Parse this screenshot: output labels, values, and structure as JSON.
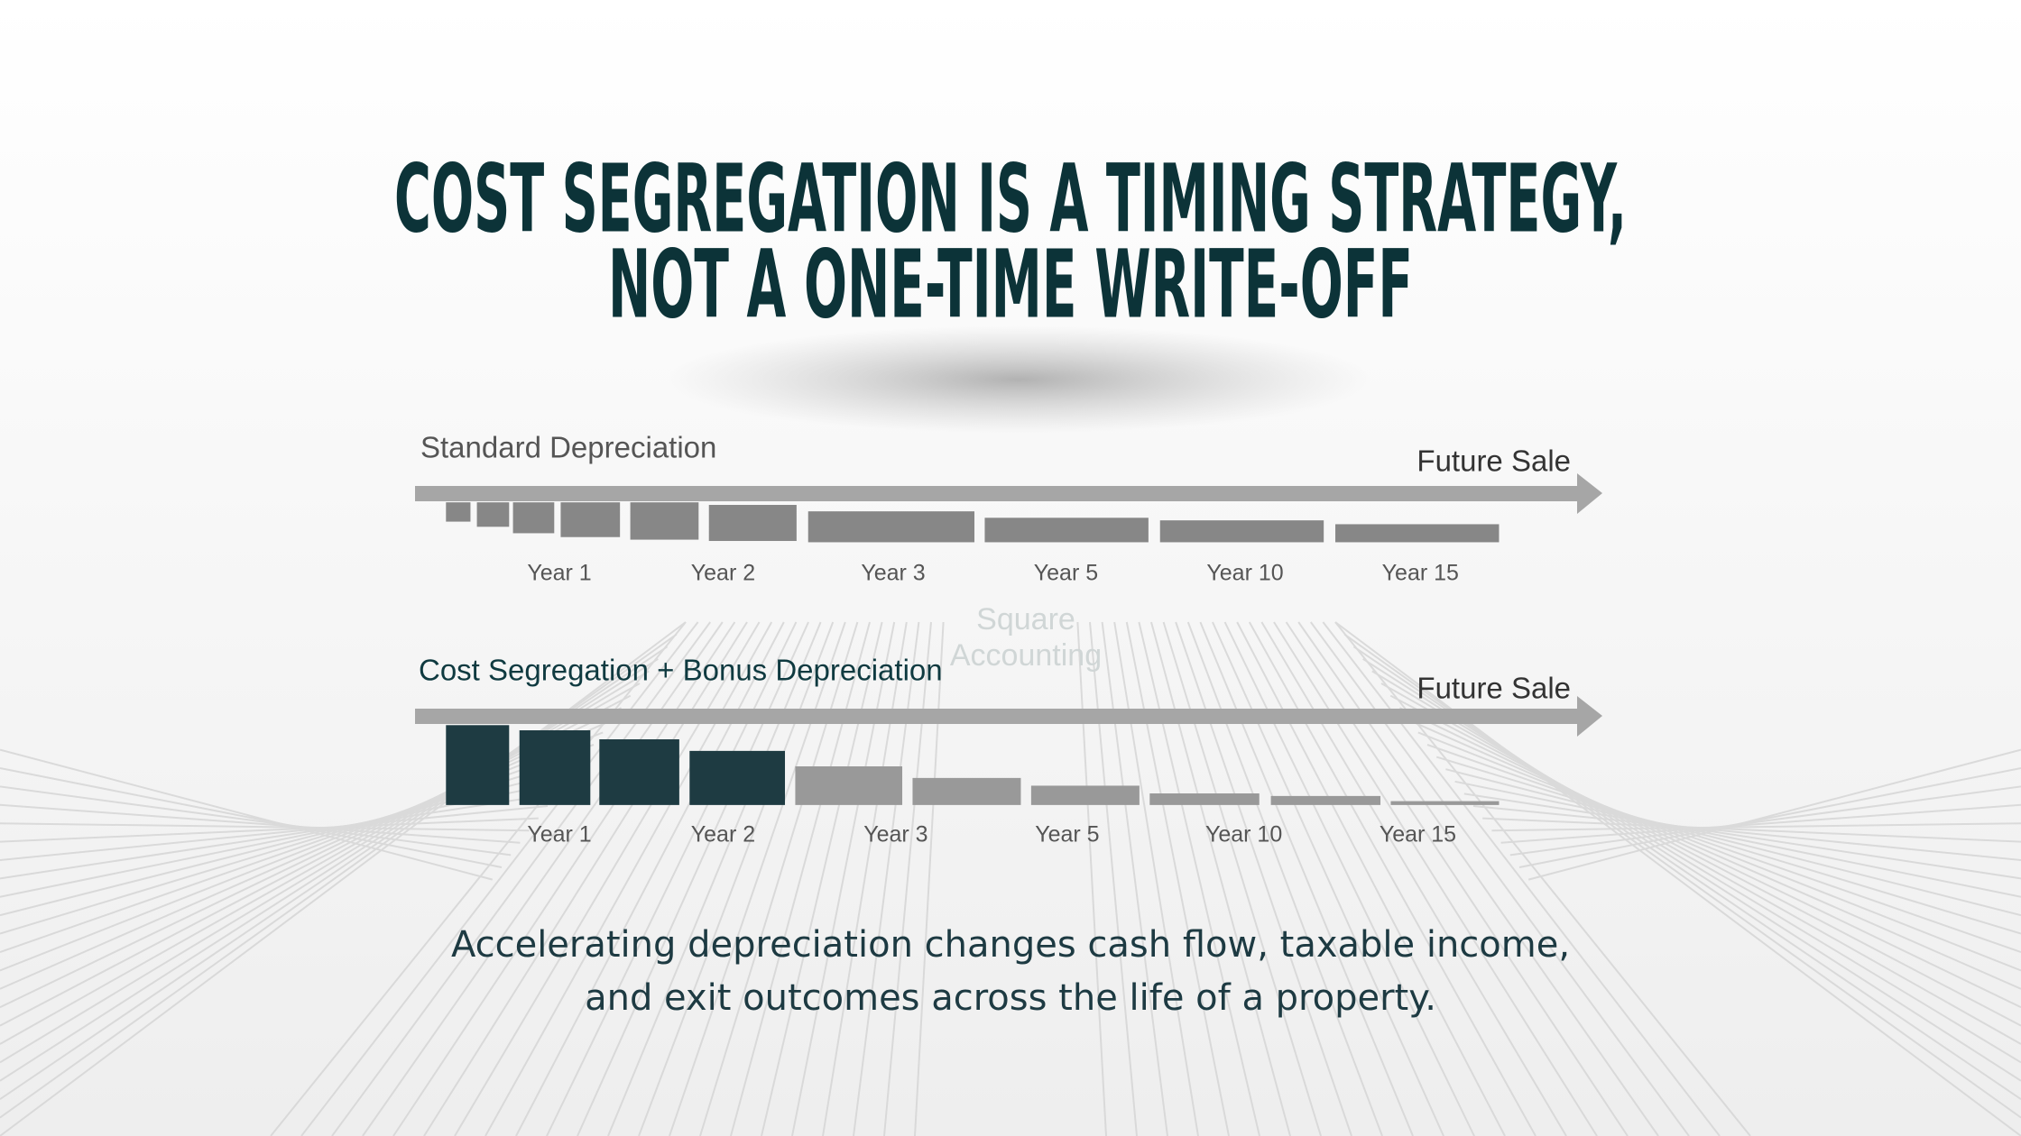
{
  "title": {
    "lines": [
      "COST SEGREGATION IS A TIMING STRATEGY,",
      "NOT A ONE-TIME WRITE-OFF"
    ]
  },
  "watermark": [
    "Square",
    "Accounting"
  ],
  "standard": {
    "label": "Standard Depreciation",
    "end_label": "Future Sale",
    "years": [
      "Year 1",
      "Year 2",
      "Year 3",
      "Year 5",
      "Year 10",
      "Year 15"
    ]
  },
  "cost_segregation": {
    "label": "Cost Segregation + Bonus Depreciation",
    "end_label": "Future Sale",
    "years": [
      "Year 1",
      "Year 2",
      "Year 3",
      "Year 5",
      "Year 10",
      "Year 15"
    ]
  },
  "caption": {
    "lines": [
      "Accelerating depreciation changes cash flow, taxable income,",
      "and exit outcomes across the life of a property."
    ]
  }
}
